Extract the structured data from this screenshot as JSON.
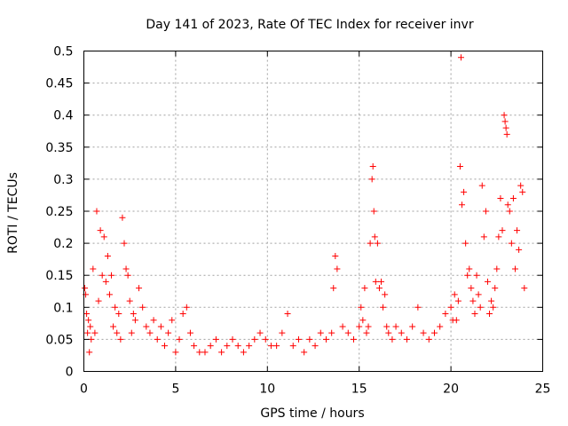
{
  "colors": {
    "series": "#ff0000",
    "axis": "#000000",
    "grid": "#a0a0a0",
    "background": "#ffffff"
  },
  "chart_data": {
    "type": "scatter",
    "title": "Day 141 of 2023, Rate Of TEC Index for receiver invr",
    "xlabel": "GPS time / hours",
    "ylabel": "ROTI / TECUs",
    "xlim": [
      0,
      25
    ],
    "ylim": [
      0,
      0.5
    ],
    "grid": true,
    "marker": "plus",
    "x_ticks": [
      0,
      5,
      10,
      15,
      20,
      25
    ],
    "x_tick_labels": [
      "0",
      "5",
      "10",
      "15",
      "20",
      "25"
    ],
    "y_ticks": [
      0,
      0.05,
      0.1,
      0.15,
      0.2,
      0.25,
      0.3,
      0.35,
      0.4,
      0.45,
      0.5
    ],
    "y_tick_labels": [
      "0",
      "0.05",
      "0.1",
      "0.15",
      "0.2",
      "0.25",
      "0.3",
      "0.35",
      "0.4",
      "0.45",
      "0.5"
    ],
    "series": [
      {
        "name": "ROTI",
        "x": [
          0.05,
          0.1,
          0.15,
          0.2,
          0.25,
          0.3,
          0.35,
          0.4,
          0.5,
          0.6,
          0.7,
          0.8,
          0.9,
          1.0,
          1.1,
          1.2,
          1.3,
          1.4,
          1.5,
          1.6,
          1.7,
          1.8,
          1.9,
          2.0,
          2.1,
          2.2,
          2.3,
          2.4,
          2.5,
          2.6,
          2.7,
          2.8,
          3.0,
          3.2,
          3.4,
          3.6,
          3.8,
          4.0,
          4.2,
          4.4,
          4.6,
          4.8,
          5.0,
          5.2,
          5.4,
          5.6,
          5.8,
          6.0,
          6.3,
          6.6,
          6.9,
          7.2,
          7.5,
          7.8,
          8.1,
          8.4,
          8.7,
          9.0,
          9.3,
          9.6,
          9.9,
          10.2,
          10.5,
          10.8,
          11.1,
          11.4,
          11.7,
          12.0,
          12.3,
          12.6,
          12.9,
          13.2,
          13.5,
          13.6,
          13.7,
          13.8,
          14.1,
          14.4,
          14.7,
          15.0,
          15.1,
          15.2,
          15.3,
          15.4,
          15.5,
          15.6,
          15.7,
          15.75,
          15.8,
          15.85,
          15.9,
          16.0,
          16.1,
          16.2,
          16.3,
          16.4,
          16.5,
          16.6,
          16.8,
          17.0,
          17.3,
          17.6,
          17.9,
          18.2,
          18.5,
          18.8,
          19.1,
          19.4,
          19.7,
          20.0,
          20.1,
          20.2,
          20.3,
          20.4,
          20.5,
          20.55,
          20.6,
          20.7,
          20.8,
          20.9,
          21.0,
          21.1,
          21.2,
          21.3,
          21.4,
          21.5,
          21.6,
          21.7,
          21.8,
          21.9,
          22.0,
          22.1,
          22.2,
          22.3,
          22.4,
          22.5,
          22.6,
          22.7,
          22.8,
          22.9,
          22.95,
          23.0,
          23.05,
          23.1,
          23.2,
          23.3,
          23.4,
          23.5,
          23.6,
          23.7,
          23.8,
          23.9,
          24.0
        ],
        "y": [
          0.13,
          0.12,
          0.09,
          0.06,
          0.08,
          0.03,
          0.07,
          0.05,
          0.16,
          0.06,
          0.25,
          0.11,
          0.22,
          0.15,
          0.21,
          0.14,
          0.18,
          0.12,
          0.15,
          0.07,
          0.1,
          0.06,
          0.09,
          0.05,
          0.24,
          0.2,
          0.16,
          0.15,
          0.11,
          0.06,
          0.09,
          0.08,
          0.13,
          0.1,
          0.07,
          0.06,
          0.08,
          0.05,
          0.07,
          0.04,
          0.06,
          0.08,
          0.03,
          0.05,
          0.09,
          0.1,
          0.06,
          0.04,
          0.03,
          0.03,
          0.04,
          0.05,
          0.03,
          0.04,
          0.05,
          0.04,
          0.03,
          0.04,
          0.05,
          0.06,
          0.05,
          0.04,
          0.04,
          0.06,
          0.09,
          0.04,
          0.05,
          0.03,
          0.05,
          0.04,
          0.06,
          0.05,
          0.06,
          0.13,
          0.18,
          0.16,
          0.07,
          0.06,
          0.05,
          0.07,
          0.1,
          0.08,
          0.13,
          0.06,
          0.07,
          0.2,
          0.3,
          0.32,
          0.25,
          0.21,
          0.14,
          0.2,
          0.13,
          0.14,
          0.1,
          0.12,
          0.07,
          0.06,
          0.05,
          0.07,
          0.06,
          0.05,
          0.07,
          0.1,
          0.06,
          0.05,
          0.06,
          0.07,
          0.09,
          0.1,
          0.08,
          0.12,
          0.08,
          0.11,
          0.32,
          0.49,
          0.26,
          0.28,
          0.2,
          0.15,
          0.16,
          0.13,
          0.11,
          0.09,
          0.15,
          0.12,
          0.1,
          0.29,
          0.21,
          0.25,
          0.14,
          0.09,
          0.11,
          0.1,
          0.13,
          0.16,
          0.21,
          0.27,
          0.22,
          0.4,
          0.39,
          0.38,
          0.37,
          0.26,
          0.25,
          0.2,
          0.27,
          0.16,
          0.22,
          0.19,
          0.29,
          0.28,
          0.13
        ]
      }
    ]
  }
}
